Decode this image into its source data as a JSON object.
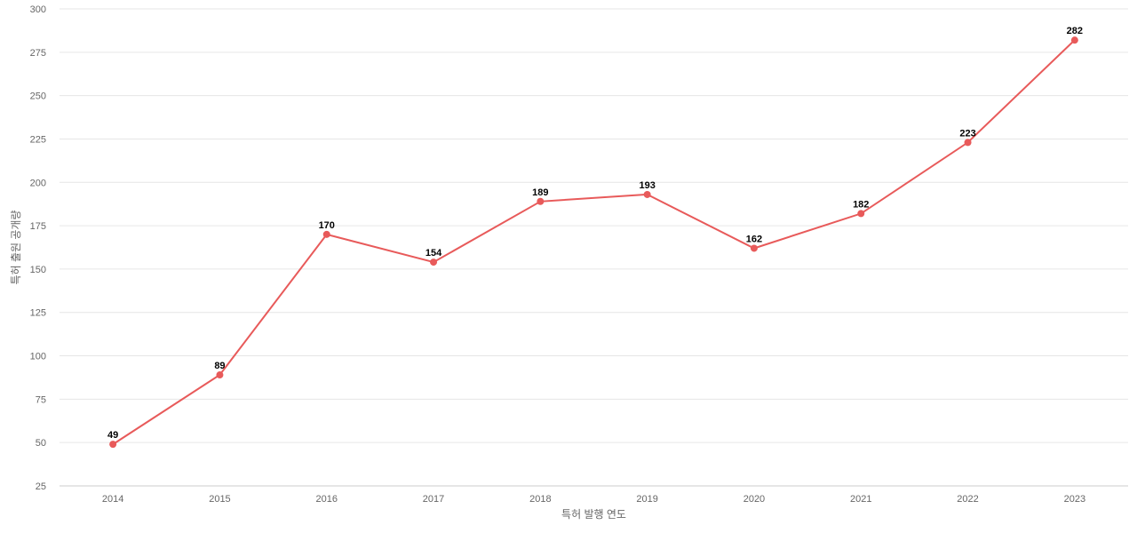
{
  "chart_data": {
    "type": "line",
    "x": [
      "2014",
      "2015",
      "2016",
      "2017",
      "2018",
      "2019",
      "2020",
      "2021",
      "2022",
      "2023"
    ],
    "series": [
      {
        "values": [
          49,
          89,
          170,
          154,
          189,
          193,
          162,
          182,
          223,
          282
        ],
        "color": "#e85a5a"
      }
    ],
    "xlabel": "특허 발행 연도",
    "ylabel": "특허 출원 공개량",
    "ylim": [
      25,
      300
    ],
    "yticks": [
      25,
      50,
      75,
      100,
      125,
      150,
      175,
      200,
      225,
      250,
      275,
      300
    ],
    "grid": true,
    "legend": "none",
    "data_labels": true
  }
}
